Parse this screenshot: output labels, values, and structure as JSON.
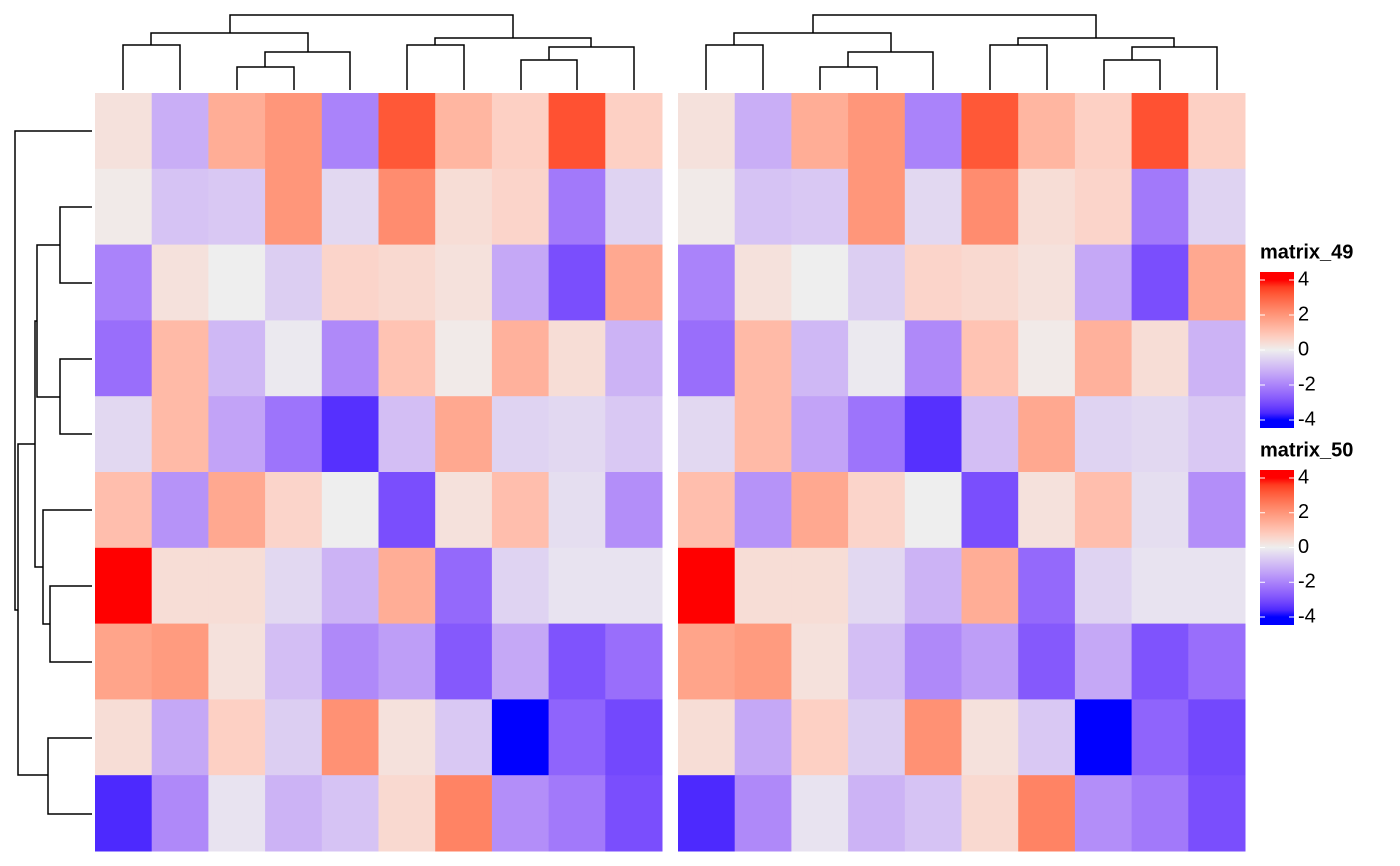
{
  "chart_data": [
    {
      "type": "heatmap",
      "name": "matrix_49",
      "values": [
        [
          0.3,
          -1.2,
          1.5,
          2.0,
          -2.0,
          3.2,
          1.3,
          0.7,
          3.3,
          0.7
        ],
        [
          0.1,
          -0.8,
          -0.7,
          2.0,
          -0.4,
          2.2,
          0.4,
          0.6,
          -2.2,
          -0.5
        ],
        [
          -2.0,
          0.3,
          0.0,
          -0.6,
          0.6,
          0.5,
          0.3,
          -1.3,
          -3.0,
          1.6
        ],
        [
          -2.4,
          1.2,
          -1.0,
          -0.1,
          -1.9,
          1.0,
          0.1,
          1.4,
          0.4,
          -1.1
        ],
        [
          -0.4,
          1.2,
          -1.4,
          -2.3,
          -3.5,
          -0.9,
          1.6,
          -0.5,
          -0.4,
          -0.7
        ],
        [
          1.1,
          -1.7,
          1.6,
          0.6,
          0.0,
          -3.0,
          0.3,
          1.1,
          -0.3,
          -1.8
        ],
        [
          4.0,
          0.4,
          0.4,
          -0.4,
          -1.1,
          1.5,
          -2.5,
          -0.5,
          -0.2,
          -0.2
        ],
        [
          1.7,
          1.9,
          0.3,
          -0.9,
          -1.9,
          -1.5,
          -2.8,
          -1.3,
          -2.9,
          -2.4
        ],
        [
          0.4,
          -1.3,
          0.7,
          -0.6,
          2.1,
          0.3,
          -0.7,
          -4.0,
          -2.6,
          -3.1
        ],
        [
          -3.6,
          -1.9,
          -0.2,
          -1.1,
          -0.8,
          0.5,
          2.4,
          -1.8,
          -2.2,
          -3.0
        ]
      ],
      "color_breaks": [
        -4,
        0,
        4
      ],
      "color_stops": [
        "#0000FF",
        "#EEEEEE",
        "#FF0000"
      ],
      "legend_ticks": [
        -4,
        -2,
        0,
        2,
        4
      ]
    },
    {
      "type": "heatmap",
      "name": "matrix_50",
      "values": [
        [
          0.3,
          -1.2,
          1.5,
          2.0,
          -2.0,
          3.2,
          1.3,
          0.7,
          3.3,
          0.7
        ],
        [
          0.1,
          -0.8,
          -0.7,
          2.0,
          -0.4,
          2.2,
          0.4,
          0.6,
          -2.2,
          -0.5
        ],
        [
          -2.0,
          0.3,
          0.0,
          -0.6,
          0.6,
          0.5,
          0.3,
          -1.3,
          -3.0,
          1.6
        ],
        [
          -2.4,
          1.2,
          -1.0,
          -0.1,
          -1.9,
          1.0,
          0.1,
          1.4,
          0.4,
          -1.1
        ],
        [
          -0.4,
          1.2,
          -1.4,
          -2.3,
          -3.5,
          -0.9,
          1.6,
          -0.5,
          -0.4,
          -0.7
        ],
        [
          1.1,
          -1.7,
          1.6,
          0.6,
          0.0,
          -3.0,
          0.3,
          1.1,
          -0.3,
          -1.8
        ],
        [
          4.0,
          0.4,
          0.4,
          -0.4,
          -1.1,
          1.5,
          -2.5,
          -0.5,
          -0.2,
          -0.2
        ],
        [
          1.7,
          1.9,
          0.3,
          -0.9,
          -1.9,
          -1.5,
          -2.8,
          -1.3,
          -2.9,
          -2.4
        ],
        [
          0.4,
          -1.3,
          0.7,
          -0.6,
          2.1,
          0.3,
          -0.7,
          -4.0,
          -2.6,
          -3.1
        ],
        [
          -3.6,
          -1.9,
          -0.2,
          -1.1,
          -0.8,
          0.5,
          2.4,
          -1.8,
          -2.2,
          -3.0
        ]
      ],
      "color_breaks": [
        -4,
        0,
        4
      ],
      "color_stops": [
        "#0000FF",
        "#EEEEEE",
        "#FF0000"
      ],
      "legend_ticks": [
        -4,
        -2,
        0,
        2,
        4
      ]
    }
  ]
}
